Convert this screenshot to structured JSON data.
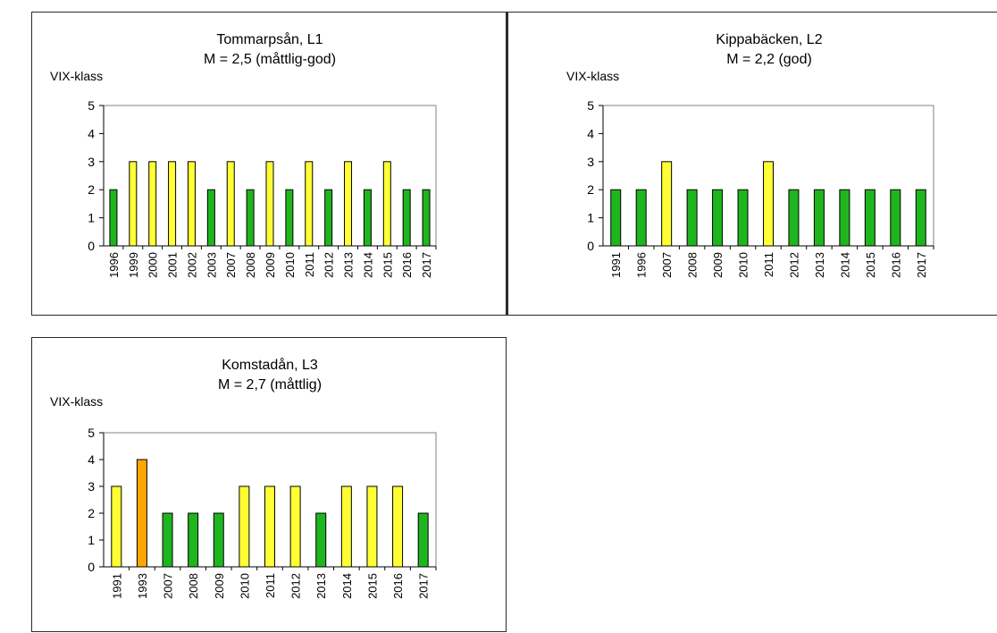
{
  "colors": {
    "god": "#1fb51f",
    "mattlig": "#ffff33",
    "otillfredsstallande": "#ffa500",
    "bar_outline": "#000000"
  },
  "chart_data": [
    {
      "type": "bar",
      "title": "Tommarpsån, L1",
      "subtitle": "M = 2,5 (måttlig-god)",
      "ylabel": "VIX-klass",
      "xlabel": "",
      "ylim": [
        0,
        5
      ],
      "yticks": [
        0,
        1,
        2,
        3,
        4,
        5
      ],
      "grid": false,
      "categories": [
        "1996",
        "1999",
        "2000",
        "2001",
        "2002",
        "2003",
        "2007",
        "2008",
        "2009",
        "2010",
        "2011",
        "2012",
        "2013",
        "2014",
        "2015",
        "2016",
        "2017"
      ],
      "values": [
        2,
        3,
        3,
        3,
        3,
        2,
        3,
        2,
        3,
        2,
        3,
        2,
        3,
        2,
        3,
        2,
        2
      ]
    },
    {
      "type": "bar",
      "title": "Kippabäcken, L2",
      "subtitle": "M = 2,2 (god)",
      "ylabel": "VIX-klass",
      "xlabel": "",
      "ylim": [
        0,
        5
      ],
      "yticks": [
        0,
        1,
        2,
        3,
        4,
        5
      ],
      "grid": false,
      "categories": [
        "1991",
        "1996",
        "2007",
        "2008",
        "2009",
        "2010",
        "2011",
        "2012",
        "2013",
        "2014",
        "2015",
        "2016",
        "2017"
      ],
      "values": [
        2,
        2,
        3,
        2,
        2,
        2,
        3,
        2,
        2,
        2,
        2,
        2,
        2
      ]
    },
    {
      "type": "bar",
      "title": "Komstadån, L3",
      "subtitle": "M = 2,7 (måttlig)",
      "ylabel": "VIX-klass",
      "xlabel": "",
      "ylim": [
        0,
        5
      ],
      "yticks": [
        0,
        1,
        2,
        3,
        4,
        5
      ],
      "grid": false,
      "categories": [
        "1991",
        "1993",
        "2007",
        "2008",
        "2009",
        "2010",
        "2011",
        "2012",
        "2013",
        "2014",
        "2015",
        "2016",
        "2017"
      ],
      "values": [
        3,
        4,
        2,
        2,
        2,
        3,
        3,
        3,
        2,
        3,
        3,
        3,
        2
      ]
    }
  ]
}
